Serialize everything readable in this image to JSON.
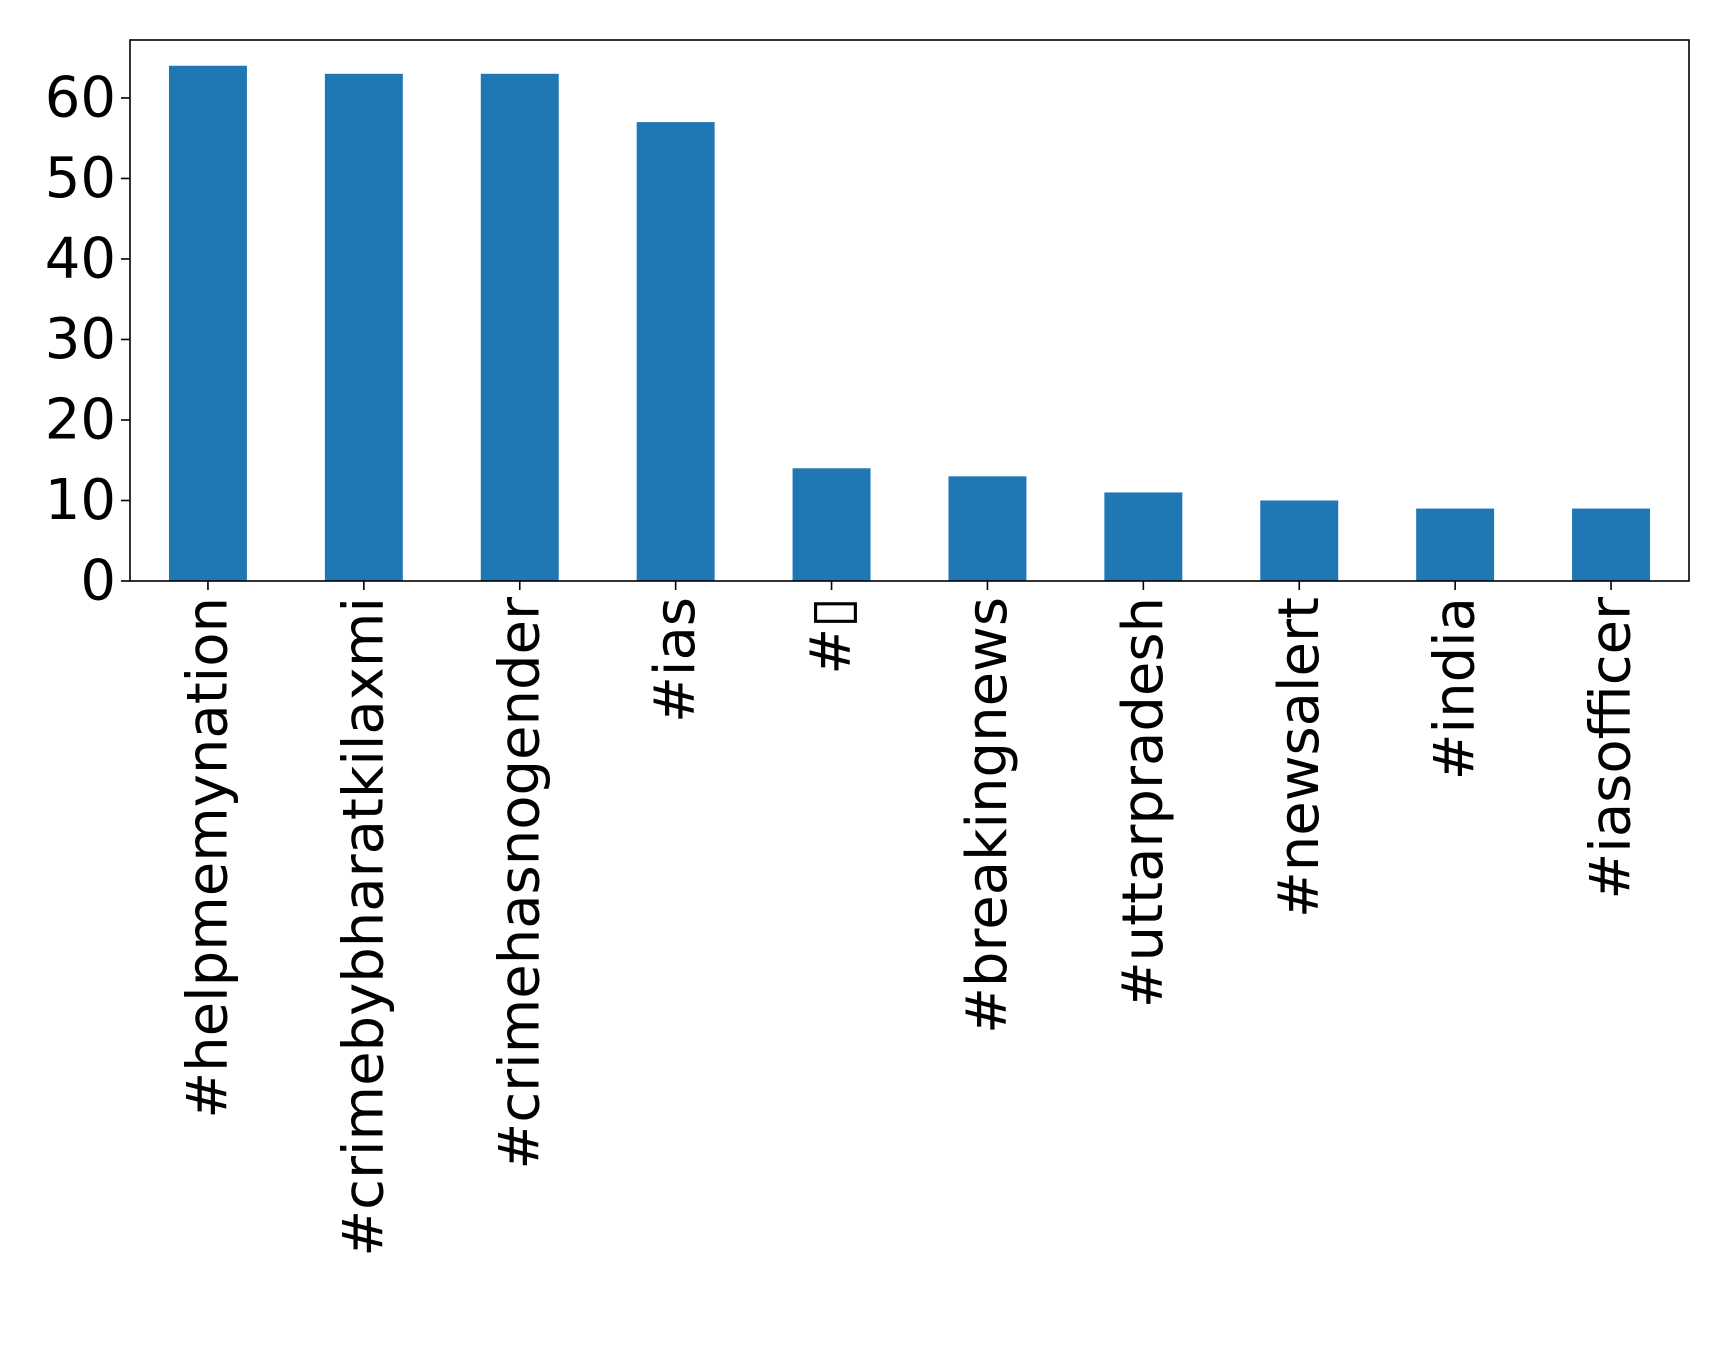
{
  "chart_data": {
    "type": "bar",
    "title": "",
    "xlabel": "",
    "ylabel": "",
    "categories": [
      "#helpmemynation",
      "#crimebybharatkilaxmi",
      "#crimehasnogender",
      "#ias",
      "#▯",
      "#breakingnews",
      "#uttarpradesh",
      "#newsalert",
      "#india",
      "#iasofficer"
    ],
    "values": [
      64,
      63,
      63,
      57,
      14,
      13,
      11,
      10,
      9,
      9
    ],
    "ylim": [
      0,
      67.2
    ],
    "yticks": [
      0,
      10,
      20,
      30,
      40,
      50,
      60
    ],
    "ytick_labels": [
      "0",
      "10",
      "20",
      "30",
      "40",
      "50",
      "60"
    ],
    "bar_color": "#1f77b4",
    "grid": false,
    "legend": "none"
  }
}
